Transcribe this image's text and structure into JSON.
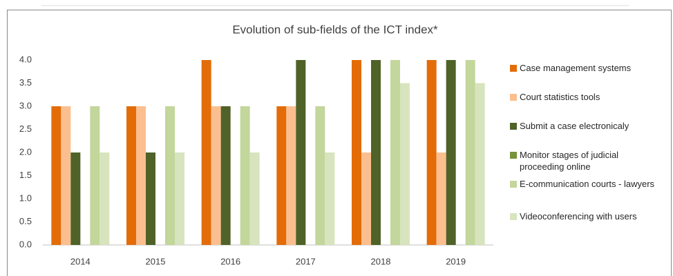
{
  "chart_data": {
    "type": "bar",
    "title": "Evolution of sub-fields of the ICT index*",
    "categories": [
      "2014",
      "2015",
      "2016",
      "2017",
      "2018",
      "2019"
    ],
    "series": [
      {
        "name": "Case management systems",
        "color": "#e36c09",
        "values": [
          3,
          3,
          4,
          3,
          4,
          4
        ]
      },
      {
        "name": "Court statistics tools",
        "color": "#fbbf8f",
        "values": [
          3,
          3,
          3,
          3,
          2,
          2
        ]
      },
      {
        "name": "Submit a case electronicaly",
        "color": "#4f6228",
        "values": [
          2,
          2,
          3,
          4,
          4,
          4
        ]
      },
      {
        "name": "Monitor stages of judicial proceeding online",
        "color": "#77933c",
        "values": [
          0,
          0,
          0,
          0,
          0,
          0
        ]
      },
      {
        "name": "E-communication courts - lawyers",
        "color": "#c3d69b",
        "values": [
          3,
          3,
          3,
          3,
          4,
          4
        ]
      },
      {
        "name": "Videoconferencing with users",
        "color": "#d7e4bd",
        "values": [
          2,
          2,
          2,
          2,
          3.5,
          3.5
        ]
      }
    ],
    "ylim": [
      0,
      4
    ],
    "yticks": [
      {
        "value": 0,
        "label": "0.0"
      },
      {
        "value": 0.5,
        "label": "0.5"
      },
      {
        "value": 1,
        "label": "1.0"
      },
      {
        "value": 1.5,
        "label": "1.5"
      },
      {
        "value": 2,
        "label": "2.0"
      },
      {
        "value": 2.5,
        "label": "2.5"
      },
      {
        "value": 3,
        "label": "3.0"
      },
      {
        "value": 3.5,
        "label": "3.5"
      },
      {
        "value": 4,
        "label": "4.0"
      }
    ],
    "grid": false,
    "legend": "right"
  }
}
